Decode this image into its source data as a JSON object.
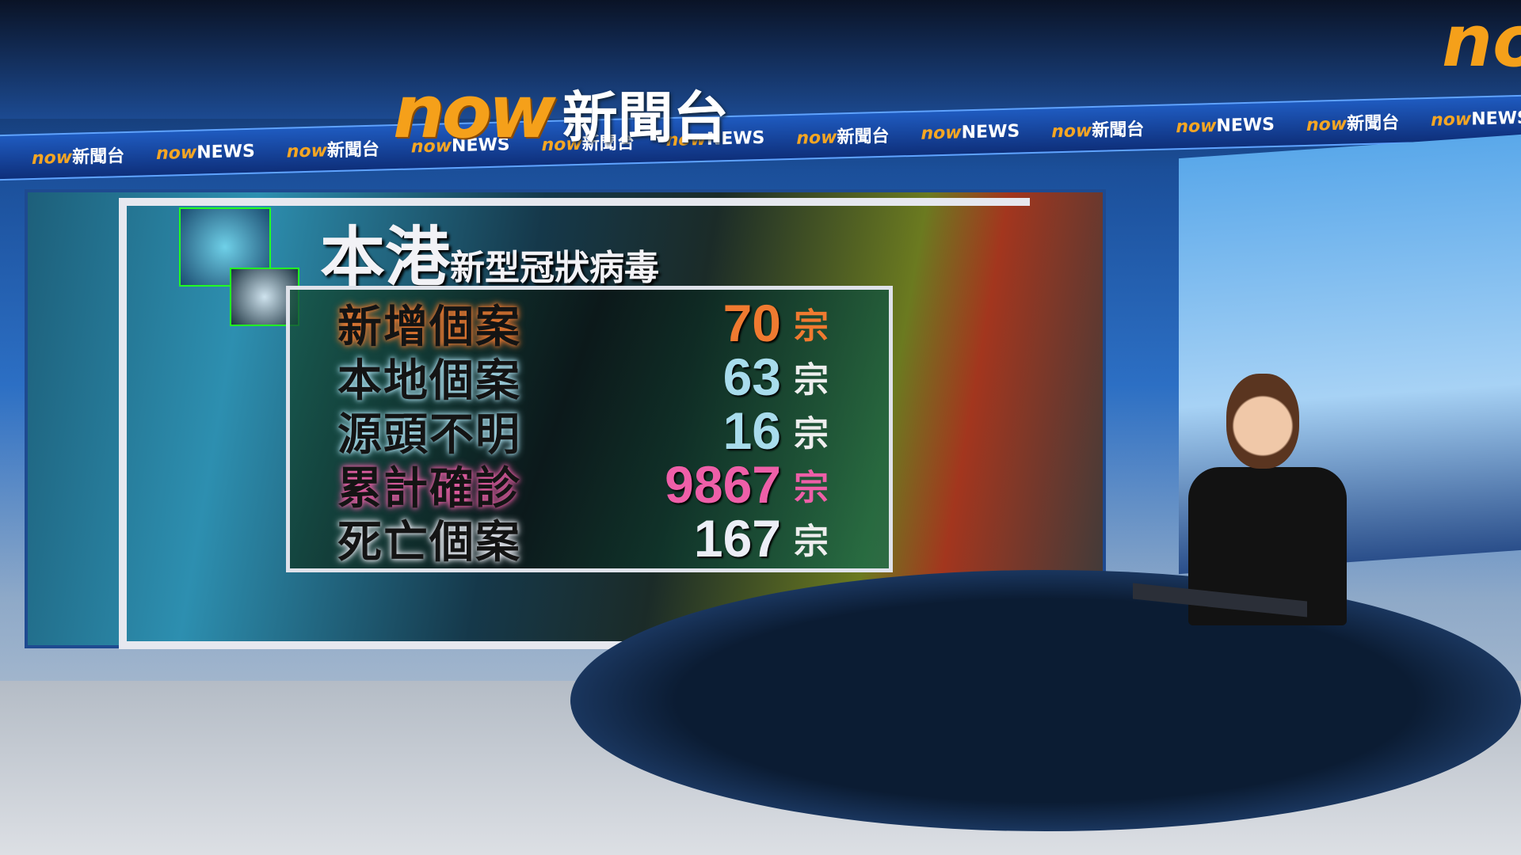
{
  "branding": {
    "logo_now": "now",
    "logo_cn": "新聞台",
    "corner_logo": "now",
    "ticker": [
      {
        "n": "now",
        "t": "新聞台"
      },
      {
        "n": "now",
        "t": "NEWS"
      },
      {
        "n": "now",
        "t": "新聞台"
      },
      {
        "n": "now",
        "t": "NEWS"
      },
      {
        "n": "now",
        "t": "新聞台"
      },
      {
        "n": "now",
        "t": "NEWS"
      },
      {
        "n": "now",
        "t": "新聞台"
      },
      {
        "n": "now",
        "t": "NEWS"
      },
      {
        "n": "now",
        "t": "新聞台"
      },
      {
        "n": "now",
        "t": "NEWS"
      },
      {
        "n": "now",
        "t": "新聞台"
      },
      {
        "n": "now",
        "t": "NEWS"
      }
    ],
    "accent": "#f5a01a"
  },
  "graphic": {
    "title": "本港",
    "subtitle": "新型冠狀病毒",
    "rows": [
      {
        "label": "新增個案",
        "value": "70",
        "unit": "宗",
        "color": "#f07a30"
      },
      {
        "label": "本地個案",
        "value": "63",
        "unit": "宗",
        "color": "#a8dcec"
      },
      {
        "label": "源頭不明",
        "value": "16",
        "unit": "宗",
        "color": "#a8dcec"
      },
      {
        "label": "累計確診",
        "value": "9867",
        "unit": "宗",
        "color": "#ee5fa8"
      },
      {
        "label": "死亡個案",
        "value": "167",
        "unit": "宗",
        "color": "#eceef6"
      }
    ]
  }
}
